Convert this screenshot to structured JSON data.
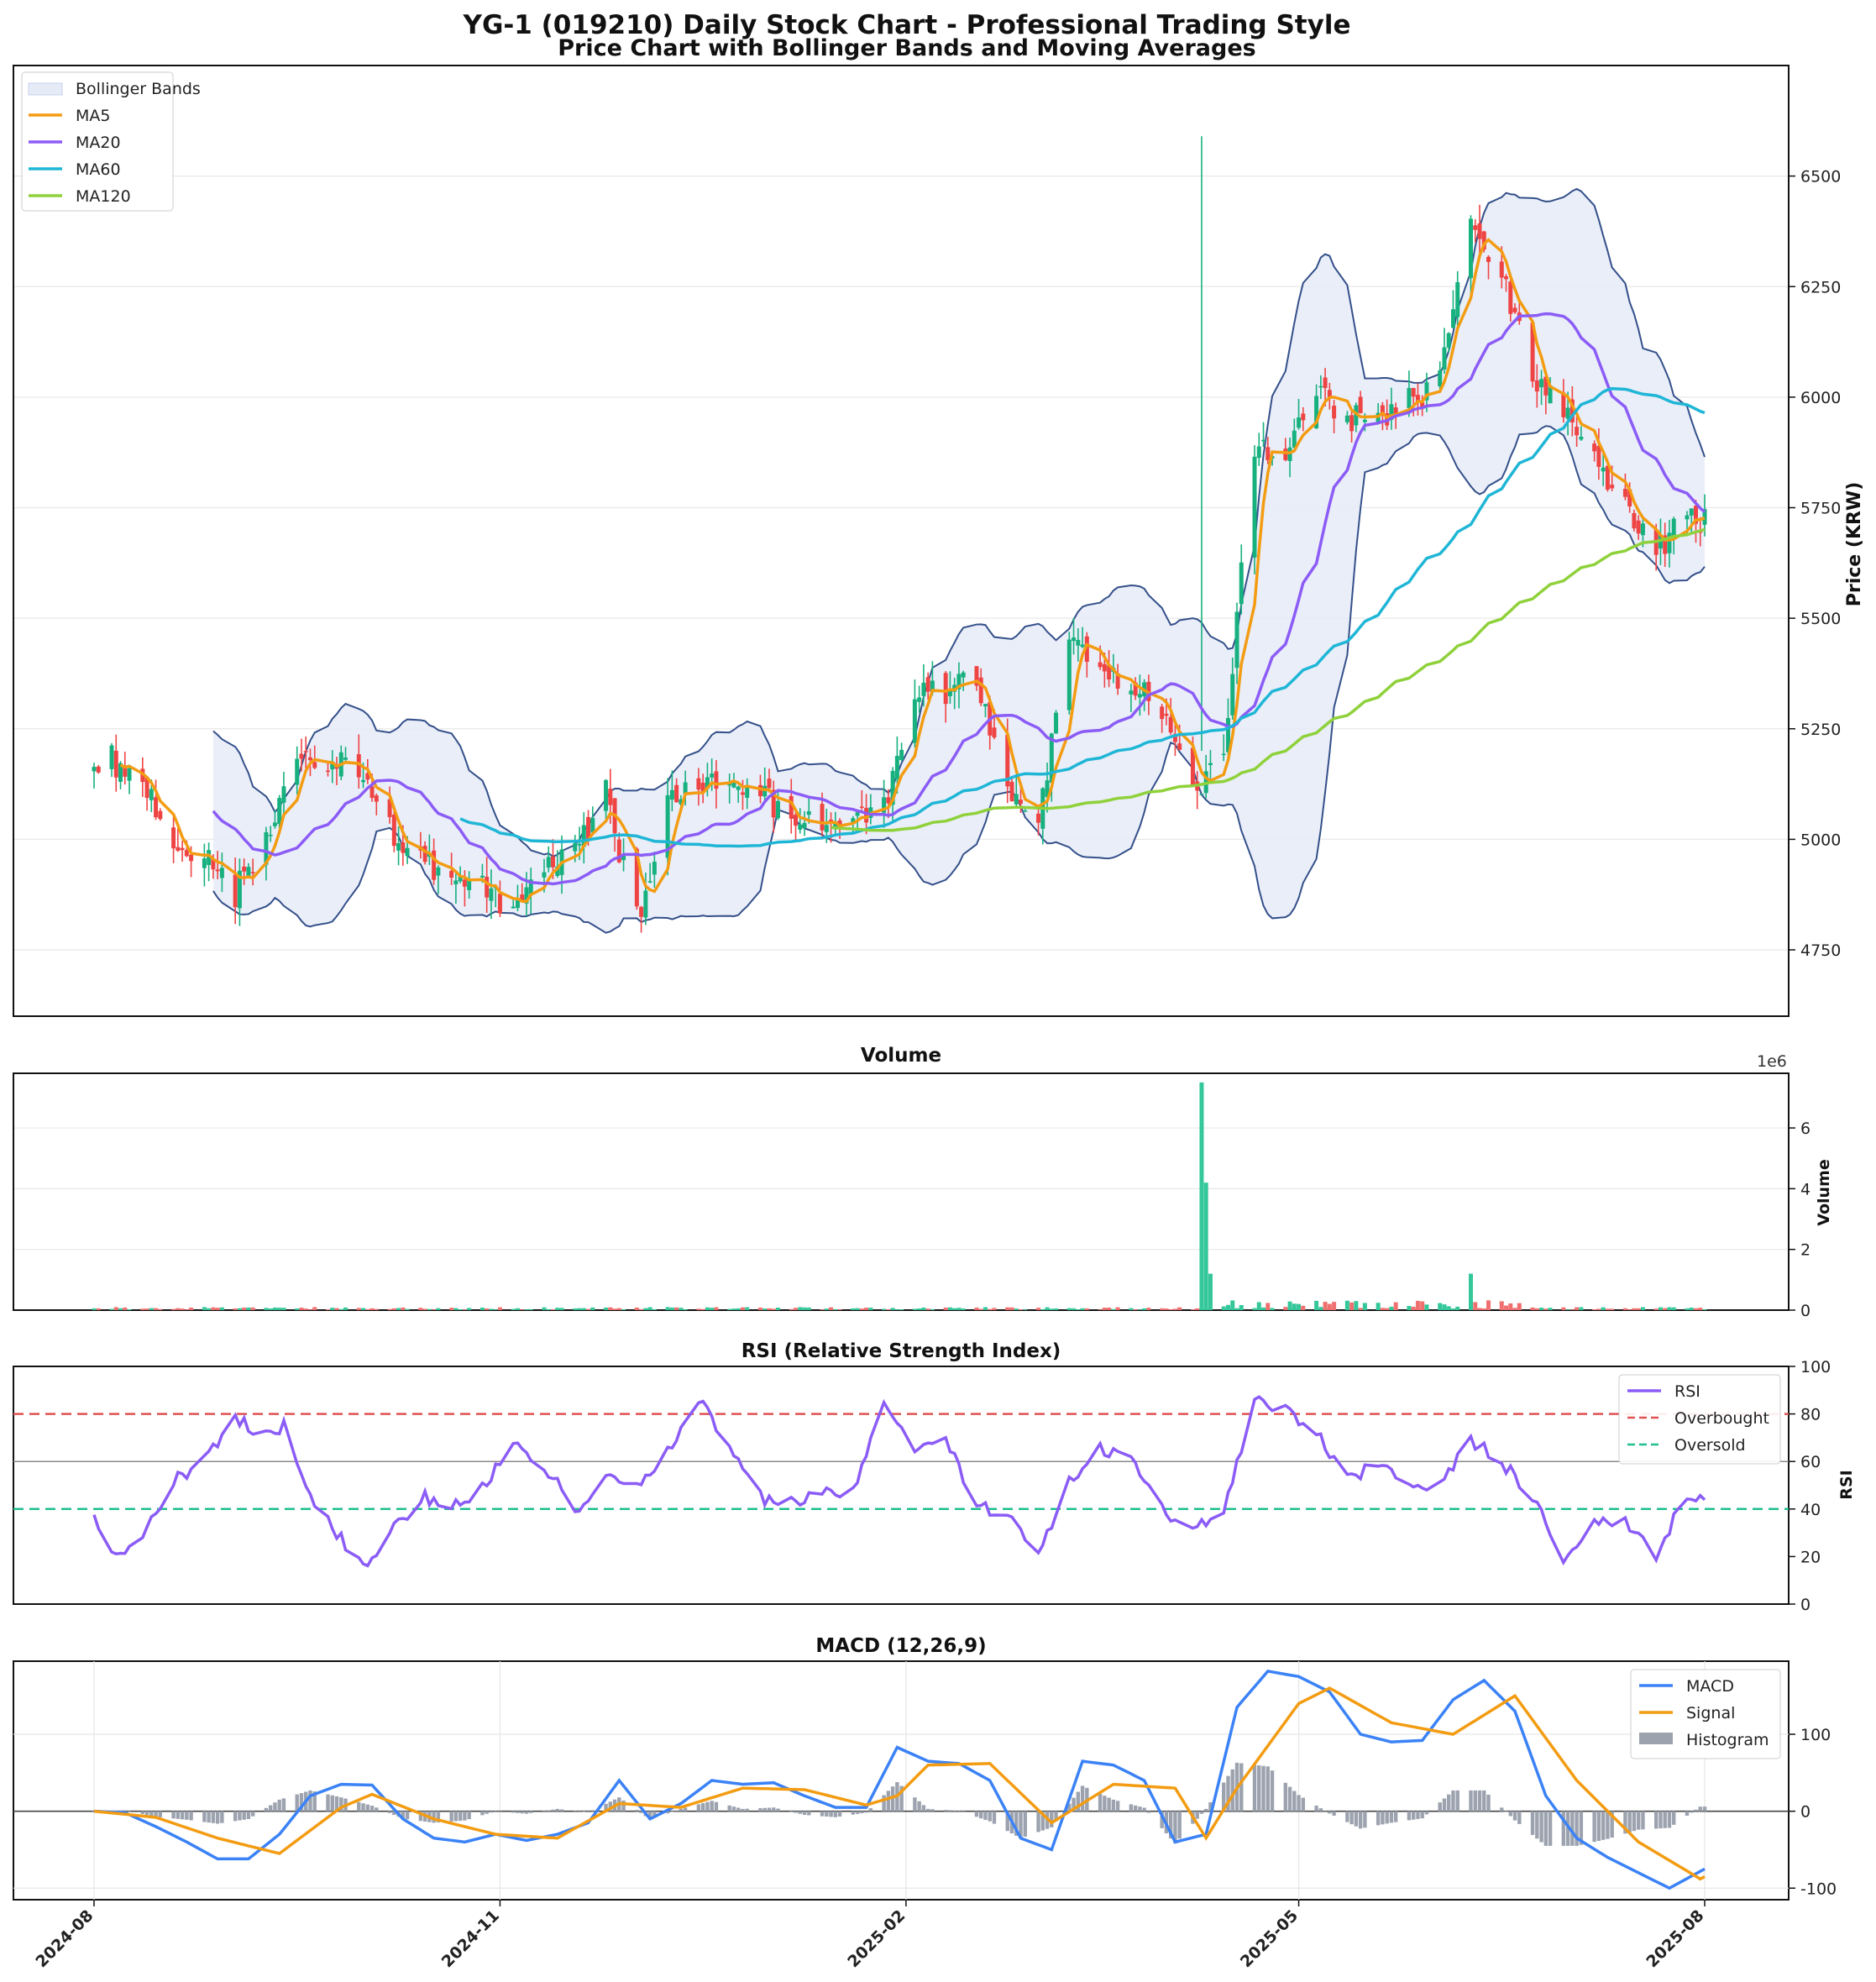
{
  "figure": {
    "title": "YG-1 (019210) Daily Stock Chart - Professional Trading Style"
  },
  "chart_data": [
    {
      "type": "candlestick",
      "title": "Price Chart with Bollinger Bands and Moving Averages",
      "ylabel": "Price (KRW)",
      "ylim": [
        4600,
        6750
      ],
      "yticks": [
        4750,
        5000,
        5250,
        5500,
        5750,
        6000,
        6250,
        6500
      ],
      "legend": [
        "Bollinger Bands",
        "MA5",
        "MA20",
        "MA60",
        "MA120"
      ],
      "legend_position": "top-left",
      "grid": true,
      "x_range": [
        "2024-08-01",
        "2025-08-01"
      ],
      "close_keypoints": [
        [
          "2024-08-01",
          5170
        ],
        [
          "2024-08-05",
          5180
        ],
        [
          "2024-08-12",
          5120
        ],
        [
          "2024-08-19",
          5000
        ],
        [
          "2024-08-26",
          4960
        ],
        [
          "2024-09-02",
          4880
        ],
        [
          "2024-09-09",
          5010
        ],
        [
          "2024-09-16",
          5160
        ],
        [
          "2024-09-23",
          5180
        ],
        [
          "2024-09-30",
          5150
        ],
        [
          "2024-10-07",
          5020
        ],
        [
          "2024-10-14",
          4940
        ],
        [
          "2024-10-21",
          4930
        ],
        [
          "2024-10-28",
          4890
        ],
        [
          "2024-11-04",
          4850
        ],
        [
          "2024-11-11",
          4920
        ],
        [
          "2024-11-18",
          4960
        ],
        [
          "2024-11-25",
          5100
        ],
        [
          "2024-12-02",
          4820
        ],
        [
          "2024-12-09",
          5080
        ],
        [
          "2024-12-16",
          5120
        ],
        [
          "2024-12-23",
          5130
        ],
        [
          "2024-12-30",
          5100
        ],
        [
          "2025-01-06",
          5060
        ],
        [
          "2025-01-13",
          5050
        ],
        [
          "2025-01-20",
          5060
        ],
        [
          "2025-01-27",
          5070
        ],
        [
          "2025-02-03",
          5350
        ],
        [
          "2025-02-10",
          5330
        ],
        [
          "2025-02-17",
          5360
        ],
        [
          "2025-02-24",
          5100
        ],
        [
          "2025-03-03",
          5040
        ],
        [
          "2025-03-10",
          5460
        ],
        [
          "2025-03-17",
          5380
        ],
        [
          "2025-03-24",
          5340
        ],
        [
          "2025-03-31",
          5300
        ],
        [
          "2025-04-07",
          5100
        ],
        [
          "2025-04-14",
          5200
        ],
        [
          "2025-04-21",
          5900
        ],
        [
          "2025-04-28",
          5880
        ],
        [
          "2025-05-05",
          6030
        ],
        [
          "2025-05-12",
          5950
        ],
        [
          "2025-05-19",
          5950
        ],
        [
          "2025-05-26",
          5990
        ],
        [
          "2025-06-02",
          6030
        ],
        [
          "2025-06-09",
          6420
        ],
        [
          "2025-06-16",
          6270
        ],
        [
          "2025-06-23",
          6040
        ],
        [
          "2025-06-30",
          5960
        ],
        [
          "2025-07-07",
          5860
        ],
        [
          "2025-07-14",
          5760
        ],
        [
          "2025-07-21",
          5660
        ],
        [
          "2025-07-28",
          5720
        ],
        [
          "2025-08-01",
          5730
        ]
      ],
      "series": [
        {
          "name": "MA5",
          "color": "#f39c12"
        },
        {
          "name": "MA20",
          "color": "#8b5cf6"
        },
        {
          "name": "MA60",
          "color": "#1fb6d6"
        },
        {
          "name": "MA120",
          "color": "#8fd13b"
        },
        {
          "name": "Bollinger Bands",
          "color": "#e6ebf8"
        }
      ],
      "colors": {
        "up": "#17b07f",
        "down": "#ef4444",
        "band_edge": "#34508a"
      }
    },
    {
      "type": "bar",
      "title": "Volume",
      "ylabel": "Volume",
      "ylim": [
        0,
        7.8
      ],
      "yticks": [
        0,
        2,
        4,
        6
      ],
      "offset_text": "1e6",
      "grid": true,
      "peaks": [
        [
          "2025-04-09",
          7.5
        ],
        [
          "2025-04-10",
          4.2
        ],
        [
          "2025-04-11",
          1.2
        ],
        [
          "2025-06-09",
          1.2
        ]
      ]
    },
    {
      "type": "line",
      "title": "RSI (Relative Strength Index)",
      "ylabel": "RSI",
      "ylim": [
        0,
        100
      ],
      "yticks": [
        0,
        20,
        40,
        60,
        80,
        100
      ],
      "legend": [
        "RSI",
        "Overbought",
        "Oversold"
      ],
      "legend_position": "top-right",
      "hlines": {
        "overbought": 80,
        "mid": 60,
        "oversold": 40
      },
      "series": [
        {
          "name": "RSI",
          "color": "#8b5cf6",
          "values": [
            [
              "2024-08-01",
              35
            ],
            [
              "2024-08-05",
              20
            ],
            [
              "2024-08-12",
              27
            ],
            [
              "2024-08-19",
              52
            ],
            [
              "2024-08-26",
              60
            ],
            [
              "2024-09-02",
              78
            ],
            [
              "2024-09-09",
              71
            ],
            [
              "2024-09-13",
              75
            ],
            [
              "2024-09-20",
              43
            ],
            [
              "2024-09-27",
              25
            ],
            [
              "2024-10-02",
              15
            ],
            [
              "2024-10-07",
              29
            ],
            [
              "2024-10-14",
              45
            ],
            [
              "2024-10-21",
              43
            ],
            [
              "2024-10-28",
              48
            ],
            [
              "2024-11-04",
              68
            ],
            [
              "2024-11-11",
              58
            ],
            [
              "2024-11-18",
              40
            ],
            [
              "2024-11-25",
              54
            ],
            [
              "2024-12-02",
              50
            ],
            [
              "2024-12-09",
              65
            ],
            [
              "2024-12-16",
              87
            ],
            [
              "2024-12-23",
              67
            ],
            [
              "2024-12-30",
              45
            ],
            [
              "2025-01-06",
              42
            ],
            [
              "2025-01-13",
              46
            ],
            [
              "2025-01-20",
              47
            ],
            [
              "2025-01-27",
              83
            ],
            [
              "2025-02-03",
              64
            ],
            [
              "2025-02-10",
              70
            ],
            [
              "2025-02-17",
              42
            ],
            [
              "2025-02-24",
              38
            ],
            [
              "2025-03-03",
              22
            ],
            [
              "2025-03-10",
              52
            ],
            [
              "2025-03-17",
              65
            ],
            [
              "2025-03-24",
              62
            ],
            [
              "2025-03-31",
              40
            ],
            [
              "2025-04-07",
              30
            ],
            [
              "2025-04-14",
              40
            ],
            [
              "2025-04-21",
              85
            ],
            [
              "2025-04-28",
              82
            ],
            [
              "2025-05-05",
              73
            ],
            [
              "2025-05-12",
              52
            ],
            [
              "2025-05-19",
              60
            ],
            [
              "2025-05-26",
              48
            ],
            [
              "2025-06-02",
              52
            ],
            [
              "2025-06-09",
              69
            ],
            [
              "2025-06-16",
              60
            ],
            [
              "2025-06-23",
              46
            ],
            [
              "2025-06-30",
              19
            ],
            [
              "2025-07-07",
              33
            ],
            [
              "2025-07-14",
              36
            ],
            [
              "2025-07-21",
              20
            ],
            [
              "2025-07-28",
              47
            ],
            [
              "2025-08-01",
              43
            ]
          ]
        },
        {
          "name": "Overbought",
          "color": "#e05252"
        },
        {
          "name": "Oversold",
          "color": "#1fbf8f"
        }
      ]
    },
    {
      "type": "line",
      "title": "MACD (12,26,9)",
      "ylim": [
        -115,
        195
      ],
      "yticks": [
        -100,
        0,
        100
      ],
      "legend": [
        "MACD",
        "Signal",
        "Histogram"
      ],
      "legend_position": "top-right",
      "xticks": [
        "2024-08",
        "2024-11",
        "2025-02",
        "2025-05",
        "2025-08"
      ],
      "series": [
        {
          "name": "MACD",
          "color": "#3b82f6",
          "values": [
            [
              "2024-08-01",
              0
            ],
            [
              "2024-08-08",
              -2
            ],
            [
              "2024-08-15",
              -20
            ],
            [
              "2024-08-22",
              -40
            ],
            [
              "2024-08-29",
              -62
            ],
            [
              "2024-09-05",
              -62
            ],
            [
              "2024-09-12",
              -30
            ],
            [
              "2024-09-19",
              20
            ],
            [
              "2024-09-26",
              35
            ],
            [
              "2024-10-03",
              34
            ],
            [
              "2024-10-10",
              -10
            ],
            [
              "2024-10-17",
              -35
            ],
            [
              "2024-10-24",
              -40
            ],
            [
              "2024-10-31",
              -30
            ],
            [
              "2024-11-07",
              -38
            ],
            [
              "2024-11-14",
              -30
            ],
            [
              "2024-11-21",
              -15
            ],
            [
              "2024-11-28",
              40
            ],
            [
              "2024-12-05",
              -10
            ],
            [
              "2024-12-12",
              10
            ],
            [
              "2024-12-19",
              40
            ],
            [
              "2024-12-26",
              35
            ],
            [
              "2025-01-02",
              37
            ],
            [
              "2025-01-09",
              20
            ],
            [
              "2025-01-16",
              5
            ],
            [
              "2025-01-23",
              5
            ],
            [
              "2025-01-30",
              83
            ],
            [
              "2025-02-06",
              65
            ],
            [
              "2025-02-13",
              62
            ],
            [
              "2025-02-20",
              40
            ],
            [
              "2025-02-27",
              -35
            ],
            [
              "2025-03-06",
              -50
            ],
            [
              "2025-03-13",
              65
            ],
            [
              "2025-03-20",
              60
            ],
            [
              "2025-03-27",
              40
            ],
            [
              "2025-04-03",
              -40
            ],
            [
              "2025-04-10",
              -30
            ],
            [
              "2025-04-17",
              135
            ],
            [
              "2025-04-24",
              182
            ],
            [
              "2025-05-01",
              175
            ],
            [
              "2025-05-08",
              155
            ],
            [
              "2025-05-15",
              100
            ],
            [
              "2025-05-22",
              90
            ],
            [
              "2025-05-29",
              92
            ],
            [
              "2025-06-05",
              145
            ],
            [
              "2025-06-12",
              170
            ],
            [
              "2025-06-19",
              130
            ],
            [
              "2025-06-26",
              20
            ],
            [
              "2025-07-03",
              -35
            ],
            [
              "2025-07-10",
              -60
            ],
            [
              "2025-07-17",
              -80
            ],
            [
              "2025-07-24",
              -100
            ],
            [
              "2025-08-01",
              -75
            ]
          ]
        },
        {
          "name": "Signal",
          "color": "#f39c12",
          "values": [
            [
              "2024-08-01",
              0
            ],
            [
              "2024-08-15",
              -8
            ],
            [
              "2024-08-29",
              -35
            ],
            [
              "2024-09-12",
              -55
            ],
            [
              "2024-09-26",
              5
            ],
            [
              "2024-10-03",
              22
            ],
            [
              "2024-10-17",
              -10
            ],
            [
              "2024-10-31",
              -30
            ],
            [
              "2024-11-14",
              -35
            ],
            [
              "2024-11-28",
              10
            ],
            [
              "2024-12-12",
              5
            ],
            [
              "2024-12-26",
              30
            ],
            [
              "2025-01-09",
              28
            ],
            [
              "2025-01-23",
              8
            ],
            [
              "2025-01-30",
              20
            ],
            [
              "2025-02-06",
              60
            ],
            [
              "2025-02-20",
              62
            ],
            [
              "2025-03-06",
              -15
            ],
            [
              "2025-03-20",
              35
            ],
            [
              "2025-04-03",
              30
            ],
            [
              "2025-04-10",
              -35
            ],
            [
              "2025-04-17",
              30
            ],
            [
              "2025-05-01",
              140
            ],
            [
              "2025-05-08",
              160
            ],
            [
              "2025-05-22",
              115
            ],
            [
              "2025-06-05",
              100
            ],
            [
              "2025-06-19",
              150
            ],
            [
              "2025-07-03",
              40
            ],
            [
              "2025-07-17",
              -40
            ],
            [
              "2025-07-31",
              -88
            ],
            [
              "2025-08-01",
              -85
            ]
          ]
        },
        {
          "name": "Histogram",
          "color": "#9ca3af"
        }
      ]
    }
  ]
}
